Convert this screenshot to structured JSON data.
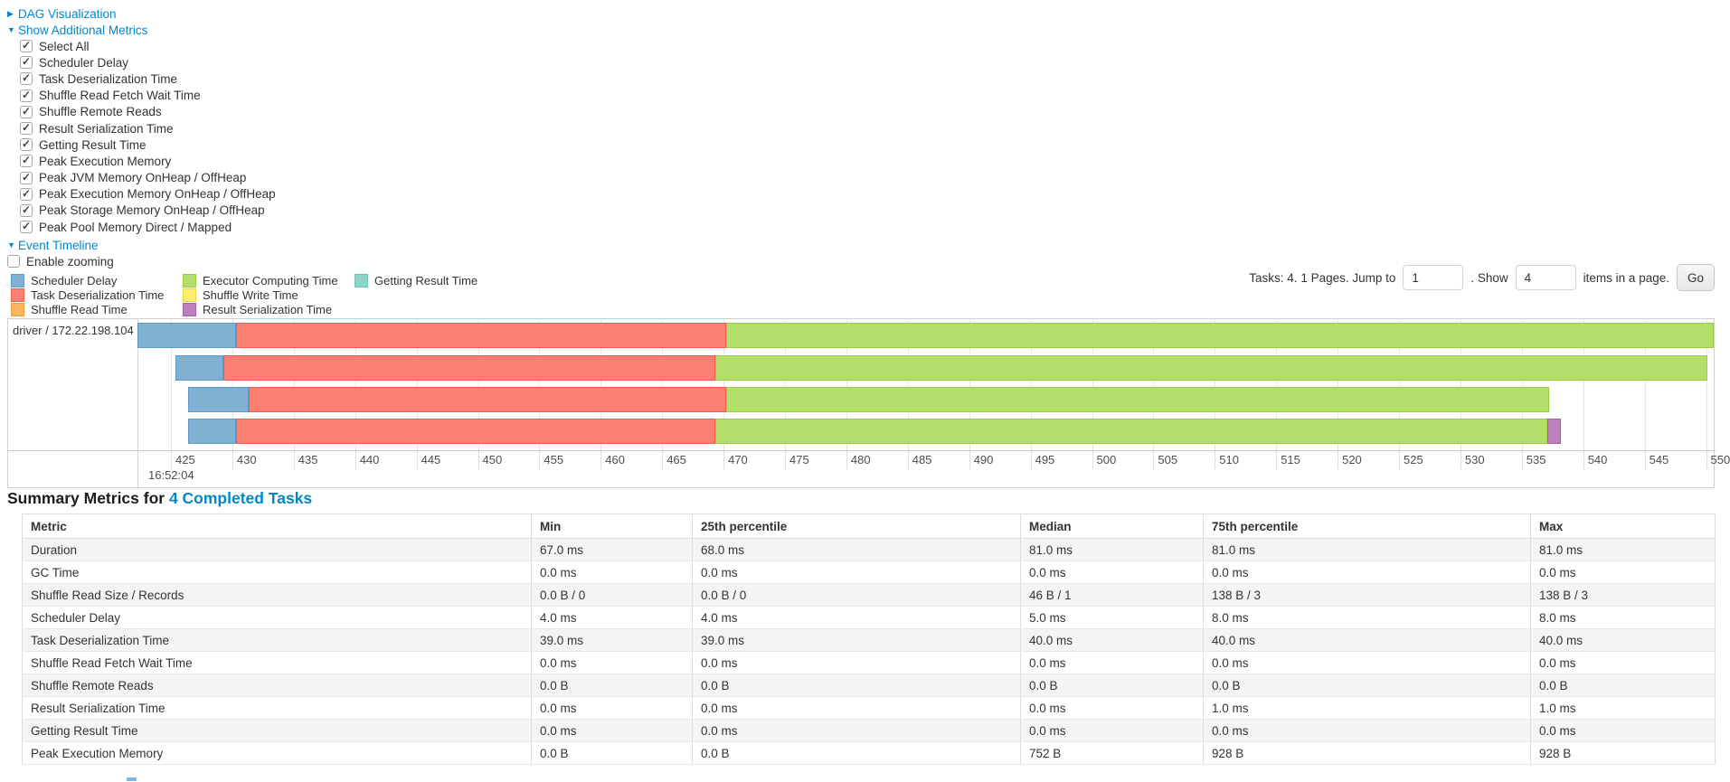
{
  "controls": {
    "dag": {
      "arrow": "▶",
      "label": "DAG Visualization"
    },
    "metrics_toggle": {
      "arrow": "▼",
      "label": "Show Additional Metrics"
    },
    "metric_checkboxes": [
      {
        "label": "Select All",
        "checked": true
      },
      {
        "label": "Scheduler Delay",
        "checked": true
      },
      {
        "label": "Task Deserialization Time",
        "checked": true
      },
      {
        "label": "Shuffle Read Fetch Wait Time",
        "checked": true
      },
      {
        "label": "Shuffle Remote Reads",
        "checked": true
      },
      {
        "label": "Result Serialization Time",
        "checked": true
      },
      {
        "label": "Getting Result Time",
        "checked": true
      },
      {
        "label": "Peak Execution Memory",
        "checked": true
      },
      {
        "label": "Peak JVM Memory OnHeap / OffHeap",
        "checked": true
      },
      {
        "label": "Peak Execution Memory OnHeap / OffHeap",
        "checked": true
      },
      {
        "label": "Peak Storage Memory OnHeap / OffHeap",
        "checked": true
      },
      {
        "label": "Peak Pool Memory Direct / Mapped",
        "checked": true
      }
    ],
    "event_timeline": {
      "arrow": "▼",
      "label": "Event Timeline"
    },
    "enable_zooming": {
      "label": "Enable zooming",
      "checked": false
    }
  },
  "legend": {
    "columns": [
      [
        {
          "name": "scheduler-delay",
          "label": "Scheduler Delay"
        },
        {
          "name": "task-deserialization",
          "label": "Task Deserialization Time"
        },
        {
          "name": "shuffle-read",
          "label": "Shuffle Read Time"
        }
      ],
      [
        {
          "name": "executor-computing",
          "label": "Executor Computing Time"
        },
        {
          "name": "shuffle-write",
          "label": "Shuffle Write Time"
        },
        {
          "name": "result-serialization",
          "label": "Result Serialization Time"
        }
      ],
      [
        {
          "name": "getting-result",
          "label": "Getting Result Time"
        }
      ]
    ]
  },
  "pagination": {
    "prefix": "Tasks: 4. 1 Pages. Jump to",
    "jump_value": "1",
    "mid": ". Show",
    "show_value": "4",
    "suffix": "items in a page.",
    "go_label": "Go"
  },
  "timeline": {
    "row_label": "driver / 172.22.198.104",
    "start_time_label": "16:52:04",
    "axis_ticks": [
      425,
      430,
      435,
      440,
      445,
      450,
      455,
      460,
      465,
      470,
      475,
      480,
      485,
      490,
      495,
      500,
      505,
      510,
      515,
      520,
      525,
      530,
      535,
      540,
      545,
      550
    ],
    "colors": {
      "scheduler-delay": "#80B1D3",
      "task-deserialization": "#FB8072",
      "shuffle-read": "#FDB462",
      "executor-computing": "#B3DE69",
      "shuffle-write": "#FFED6F",
      "result-serialization": "#BC80BD",
      "getting-result": "#8DD3C7"
    },
    "bars": [
      {
        "segments": [
          {
            "name": "scheduler-delay",
            "start": 422.3,
            "end": 430.3
          },
          {
            "name": "task-deserialization",
            "start": 430.3,
            "end": 470.2
          },
          {
            "name": "executor-computing",
            "start": 470.2,
            "end": 550.6
          }
        ]
      },
      {
        "segments": [
          {
            "name": "scheduler-delay",
            "start": 425.4,
            "end": 429.3
          },
          {
            "name": "task-deserialization",
            "start": 429.3,
            "end": 469.3
          },
          {
            "name": "executor-computing",
            "start": 469.3,
            "end": 550.1
          }
        ]
      },
      {
        "segments": [
          {
            "name": "scheduler-delay",
            "start": 426.4,
            "end": 431.3
          },
          {
            "name": "task-deserialization",
            "start": 431.3,
            "end": 470.2
          },
          {
            "name": "executor-computing",
            "start": 470.2,
            "end": 537.2
          }
        ]
      },
      {
        "segments": [
          {
            "name": "scheduler-delay",
            "start": 426.4,
            "end": 430.3
          },
          {
            "name": "task-deserialization",
            "start": 430.3,
            "end": 469.3
          },
          {
            "name": "executor-computing",
            "start": 469.3,
            "end": 537.1
          },
          {
            "name": "result-serialization",
            "start": 537.1,
            "end": 538.2
          }
        ]
      }
    ]
  },
  "summary": {
    "title_prefix": "Summary Metrics for ",
    "title_link": "4 Completed Tasks",
    "columns": [
      "Metric",
      "Min",
      "25th percentile",
      "Median",
      "75th percentile",
      "Max"
    ],
    "rows": [
      {
        "metric": "Duration",
        "values": [
          "67.0 ms",
          "68.0 ms",
          "81.0 ms",
          "81.0 ms",
          "81.0 ms"
        ]
      },
      {
        "metric": "GC Time",
        "values": [
          "0.0 ms",
          "0.0 ms",
          "0.0 ms",
          "0.0 ms",
          "0.0 ms"
        ]
      },
      {
        "metric": "Shuffle Read Size / Records",
        "values": [
          "0.0 B / 0",
          "0.0 B / 0",
          "46 B / 1",
          "138 B / 3",
          "138 B / 3"
        ]
      },
      {
        "metric": "Scheduler Delay",
        "values": [
          "4.0 ms",
          "4.0 ms",
          "5.0 ms",
          "8.0 ms",
          "8.0 ms"
        ]
      },
      {
        "metric": "Task Deserialization Time",
        "values": [
          "39.0 ms",
          "39.0 ms",
          "40.0 ms",
          "40.0 ms",
          "40.0 ms"
        ]
      },
      {
        "metric": "Shuffle Read Fetch Wait Time",
        "values": [
          "0.0 ms",
          "0.0 ms",
          "0.0 ms",
          "0.0 ms",
          "0.0 ms"
        ]
      },
      {
        "metric": "Shuffle Remote Reads",
        "values": [
          "0.0 B",
          "0.0 B",
          "0.0 B",
          "0.0 B",
          "0.0 B"
        ]
      },
      {
        "metric": "Result Serialization Time",
        "values": [
          "0.0 ms",
          "0.0 ms",
          "0.0 ms",
          "1.0 ms",
          "1.0 ms"
        ]
      },
      {
        "metric": "Getting Result Time",
        "values": [
          "0.0 ms",
          "0.0 ms",
          "0.0 ms",
          "0.0 ms",
          "0.0 ms"
        ]
      },
      {
        "metric": "Peak Execution Memory",
        "values": [
          "0.0 B",
          "0.0 B",
          "752 B",
          "928 B",
          "928 B"
        ]
      }
    ]
  }
}
